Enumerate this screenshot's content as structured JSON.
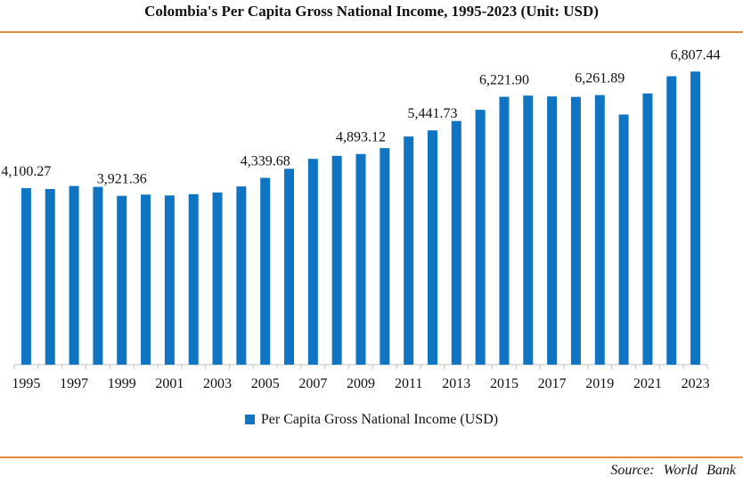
{
  "title": "Colombia's Per Capita Gross National Income, 1995-2023 (Unit: USD)",
  "source": "Source:  World Bank",
  "legend": {
    "label": "Per Capita Gross National Income (USD)"
  },
  "colors": {
    "bar": "#0f75c2",
    "accent_rule": "#e4893a",
    "axis": "#bfbfbf"
  },
  "chart_data": {
    "type": "bar",
    "title": "Colombia's Per Capita Gross National Income, 1995-2023 (Unit: USD)",
    "xlabel": "",
    "ylabel": "",
    "ylim": [
      0,
      7000
    ],
    "grid": false,
    "legend_position": "bottom",
    "categories": [
      "1995",
      "1996",
      "1997",
      "1998",
      "1999",
      "2000",
      "2001",
      "2002",
      "2003",
      "2004",
      "2005",
      "2006",
      "2007",
      "2008",
      "2009",
      "2010",
      "2011",
      "2012",
      "2013",
      "2014",
      "2015",
      "2016",
      "2017",
      "2018",
      "2019",
      "2020",
      "2021",
      "2022",
      "2023"
    ],
    "x_tick_labels": [
      "1995",
      "1997",
      "1999",
      "2001",
      "2003",
      "2005",
      "2007",
      "2009",
      "2011",
      "2013",
      "2015",
      "2017",
      "2019",
      "2021",
      "2023"
    ],
    "series": [
      {
        "name": "Per Capita Gross National Income (USD)",
        "values": [
          4100.27,
          4080,
          4150,
          4130,
          3921.36,
          3950,
          3930,
          3960,
          4000,
          4139,
          4339.68,
          4550,
          4780,
          4850,
          4893.12,
          5030,
          5300,
          5441.73,
          5660,
          5920,
          6221.9,
          6250,
          6230,
          6220,
          6261.89,
          5810,
          6300,
          6700,
          6807.44
        ]
      }
    ],
    "data_labels": [
      {
        "category": "1995",
        "text": "4,100.27"
      },
      {
        "category": "1999",
        "text": "3,921.36"
      },
      {
        "category": "2005",
        "text": "4,339.68"
      },
      {
        "category": "2009",
        "text": "4,893.12"
      },
      {
        "category": "2012",
        "text": "5,441.73"
      },
      {
        "category": "2015",
        "text": "6,221.90"
      },
      {
        "category": "2019",
        "text": "6,261.89"
      },
      {
        "category": "2023",
        "text": "6,807.44"
      }
    ]
  }
}
